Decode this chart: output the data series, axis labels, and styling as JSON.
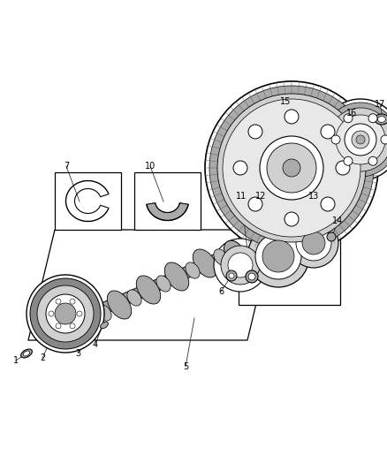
{
  "bg_color": "#ffffff",
  "lc": "#000000",
  "lg": "#d0d0d0",
  "mg": "#aaaaaa",
  "dg": "#888888",
  "fig_w": 4.38,
  "fig_h": 5.33,
  "dpi": 100
}
